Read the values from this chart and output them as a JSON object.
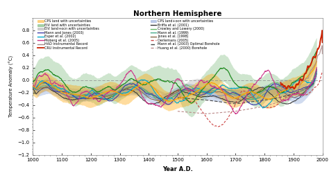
{
  "title": "Northern Hemisphere",
  "xlabel": "Year A.D.",
  "ylabel": "Temperature Anomaly (°C)",
  "xlim": [
    1000,
    2000
  ],
  "ylim": [
    -1.2,
    1.0
  ],
  "yticks": [
    -1.2,
    -1.0,
    -0.8,
    -0.6,
    -0.4,
    -0.2,
    0.0,
    0.2,
    0.4,
    0.6,
    0.8
  ],
  "xticks": [
    1000,
    1100,
    1200,
    1300,
    1400,
    1500,
    1600,
    1700,
    1800,
    1900,
    2000
  ],
  "bg_color": "#ffffff",
  "plot_bg": "#f8f8f0",
  "colors": {
    "cps_land": "#FFA500",
    "eiv_land": "#228B22",
    "eiv_ocn": "#888888",
    "cps_ocn": "#6688CC",
    "mann_jones": "#4040AA",
    "esper": "#00AACC",
    "moberg": "#CC3388",
    "had": "#AA8888",
    "cru": "#CC2200",
    "briffa": "#333333",
    "crowley": "#66BB66",
    "mann99": "#44AA88",
    "jones98": "#886644",
    "oerl": "#CC4444",
    "mann_bh": "#444444",
    "huang": "#BB8888"
  }
}
